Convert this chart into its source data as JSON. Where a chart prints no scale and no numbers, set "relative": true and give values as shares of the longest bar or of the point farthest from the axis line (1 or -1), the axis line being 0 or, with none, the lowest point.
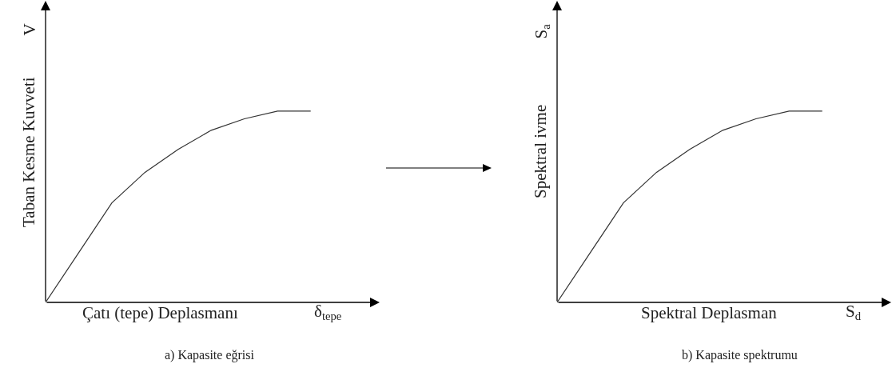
{
  "chart_data": [
    {
      "type": "line",
      "categories": [
        null,
        null,
        null,
        null,
        null,
        null,
        null,
        null,
        null
      ],
      "values": [
        0,
        0.26,
        0.52,
        0.68,
        0.8,
        0.9,
        0.96,
        1,
        1
      ],
      "relative": true,
      "color": "#333333",
      "ylabel": "Taban Kesme Kuvveti",
      "xlabel": "Çatı (tepe) Deplasmanı",
      "annotations": [
        "V",
        "δ$_{tepe}$",
        "a) Kapasite eğrisi"
      ]
    },
    {
      "type": "line",
      "categories": [
        null,
        null,
        null,
        null,
        null,
        null,
        null,
        null,
        null
      ],
      "values": [
        0,
        0.26,
        0.52,
        0.68,
        0.8,
        0.9,
        0.96,
        1,
        1
      ],
      "relative": true,
      "color": "#333333",
      "ylabel": "Spektral ivme",
      "xlabel": "Spektral Deplasman",
      "annotations": [
        "S$_{a}$",
        "S$_{d}$",
        "b) Kapasite spektrumu"
      ]
    }
  ]
}
